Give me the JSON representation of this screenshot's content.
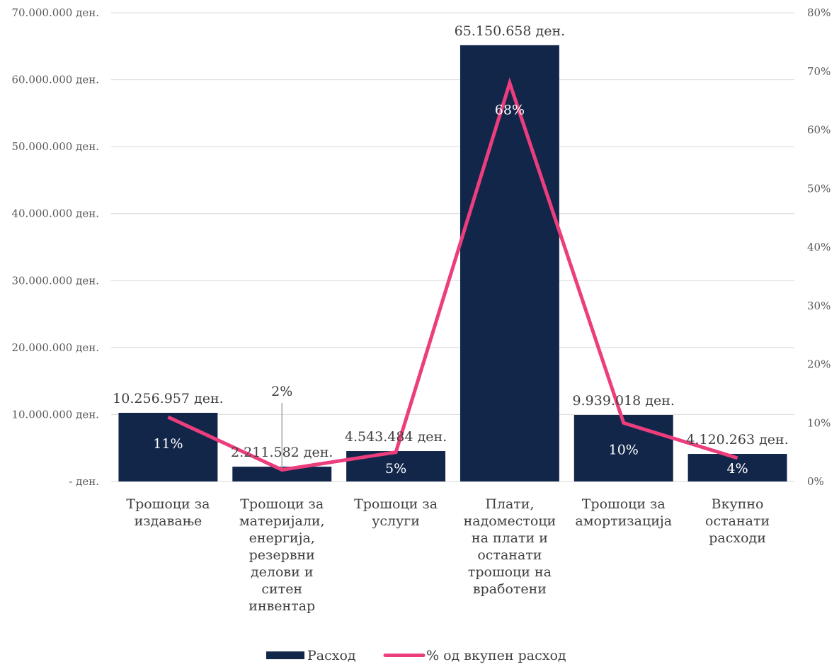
{
  "chart_data": {
    "type": "bar",
    "categories": [
      [
        "Трошоци за",
        "издавање"
      ],
      [
        "Трошоци за",
        "материјали,",
        "енергија,",
        "резервни",
        "делови и",
        "ситен",
        "инвентар"
      ],
      [
        "Трошоци за",
        "услуги"
      ],
      [
        "Плати,",
        "надоместоци",
        "на плати и",
        "останати",
        "трошоци на",
        "вработени"
      ],
      [
        "Трошоци за",
        "амортизација"
      ],
      [
        "Вкупно",
        "останати",
        "расходи"
      ]
    ],
    "series": [
      {
        "name": "Расход",
        "type": "bar",
        "axis": "left",
        "values": [
          10256957,
          2211582,
          4543484,
          65150658,
          9939018,
          4120263
        ],
        "labels": [
          "10.256.957 ден.",
          "2.211.582 ден.",
          "4.543.484 ден.",
          "65.150.658 ден.",
          "9.939.018 ден.",
          "4.120.263 ден."
        ],
        "color": "#12264a"
      },
      {
        "name": "% од вкупен расход",
        "type": "line",
        "axis": "right",
        "values": [
          11,
          2,
          5,
          68,
          10,
          4
        ],
        "labels": [
          "11%",
          "2%",
          "5%",
          "68%",
          "10%",
          "4%"
        ],
        "color": "#ec3d7d"
      }
    ],
    "left_axis": {
      "ylim": [
        0,
        70000000
      ],
      "ticks": [
        "-   ден.",
        "10.000.000 ден.",
        "20.000.000 ден.",
        "30.000.000 ден.",
        "40.000.000 ден.",
        "50.000.000 ден.",
        "60.000.000 ден.",
        "70.000.000 ден."
      ]
    },
    "right_axis": {
      "ylim": [
        0,
        80
      ],
      "ticks": [
        "0%",
        "10%",
        "20%",
        "30%",
        "40%",
        "50%",
        "60%",
        "70%",
        "80%"
      ]
    },
    "grid": true,
    "legend_position": "bottom",
    "title": "",
    "xlabel": "",
    "ylabel": ""
  }
}
